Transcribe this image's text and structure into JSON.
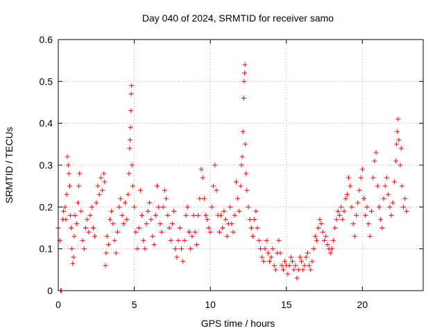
{
  "chart_data": {
    "type": "scatter",
    "title": "Day 040 of 2024, SRMTID for receiver samo",
    "xlabel": "GPS time / hours",
    "ylabel": "SRMTID / TECUs",
    "xlim": [
      0,
      24
    ],
    "ylim": [
      0,
      0.6
    ],
    "xticks": [
      0,
      5,
      10,
      15,
      20
    ],
    "xtick_labels": [
      "0",
      "5",
      "10",
      "15",
      "20"
    ],
    "yticks": [
      0,
      0.1,
      0.2,
      0.3,
      0.4,
      0.5,
      0.6
    ],
    "ytick_labels": [
      "0",
      "0.1",
      "0.2",
      "0.3",
      "0.4",
      "0.5",
      "0.6"
    ],
    "grid": true,
    "marker": "plus",
    "color": "#ff0000",
    "series": [
      {
        "name": "SRMTID",
        "points": [
          [
            0.0,
            0.15
          ],
          [
            0.1,
            0.12
          ],
          [
            0.15,
            0.0
          ],
          [
            0.2,
            0.0
          ],
          [
            0.3,
            0.17
          ],
          [
            0.35,
            0.19
          ],
          [
            0.45,
            0.2
          ],
          [
            0.5,
            0.17
          ],
          [
            0.55,
            0.23
          ],
          [
            0.6,
            0.32
          ],
          [
            0.65,
            0.3
          ],
          [
            0.7,
            0.28
          ],
          [
            0.75,
            0.25
          ],
          [
            0.8,
            0.18
          ],
          [
            0.85,
            0.15
          ],
          [
            0.9,
            0.1
          ],
          [
            0.95,
            0.065
          ],
          [
            1.0,
            0.08
          ],
          [
            1.05,
            0.13
          ],
          [
            1.1,
            0.18
          ],
          [
            1.2,
            0.16
          ],
          [
            1.3,
            0.21
          ],
          [
            1.35,
            0.25
          ],
          [
            1.4,
            0.28
          ],
          [
            1.5,
            0.19
          ],
          [
            1.6,
            0.12
          ],
          [
            1.7,
            0.1
          ],
          [
            1.8,
            0.15
          ],
          [
            1.9,
            0.17
          ],
          [
            2.0,
            0.14
          ],
          [
            2.1,
            0.18
          ],
          [
            2.2,
            0.2
          ],
          [
            2.3,
            0.15
          ],
          [
            2.4,
            0.13
          ],
          [
            2.5,
            0.21
          ],
          [
            2.6,
            0.25
          ],
          [
            2.7,
            0.23
          ],
          [
            2.8,
            0.27
          ],
          [
            2.9,
            0.24
          ],
          [
            3.0,
            0.28
          ],
          [
            3.05,
            0.26
          ],
          [
            3.1,
            0.06
          ],
          [
            3.15,
            0.09
          ],
          [
            3.2,
            0.13
          ],
          [
            3.3,
            0.11
          ],
          [
            3.4,
            0.17
          ],
          [
            3.5,
            0.19
          ],
          [
            3.6,
            0.16
          ],
          [
            3.7,
            0.12
          ],
          [
            3.8,
            0.09
          ],
          [
            3.9,
            0.14
          ],
          [
            4.0,
            0.2
          ],
          [
            4.1,
            0.22
          ],
          [
            4.2,
            0.18
          ],
          [
            4.3,
            0.16
          ],
          [
            4.4,
            0.21
          ],
          [
            4.5,
            0.17
          ],
          [
            4.6,
            0.23
          ],
          [
            4.65,
            0.28
          ],
          [
            4.7,
            0.34
          ],
          [
            4.72,
            0.36
          ],
          [
            4.75,
            0.39
          ],
          [
            4.78,
            0.43
          ],
          [
            4.8,
            0.47
          ],
          [
            4.82,
            0.49
          ],
          [
            4.85,
            0.3
          ],
          [
            4.9,
            0.25
          ],
          [
            5.0,
            0.2
          ],
          [
            5.1,
            0.14
          ],
          [
            5.2,
            0.1
          ],
          [
            5.3,
            0.15
          ],
          [
            5.4,
            0.24
          ],
          [
            5.5,
            0.18
          ],
          [
            5.6,
            0.12
          ],
          [
            5.7,
            0.1
          ],
          [
            5.8,
            0.16
          ],
          [
            5.9,
            0.19
          ],
          [
            6.0,
            0.21
          ],
          [
            6.1,
            0.17
          ],
          [
            6.2,
            0.13
          ],
          [
            6.3,
            0.11
          ],
          [
            6.4,
            0.18
          ],
          [
            6.5,
            0.25
          ],
          [
            6.6,
            0.2
          ],
          [
            6.7,
            0.16
          ],
          [
            6.8,
            0.14
          ],
          [
            6.9,
            0.2
          ],
          [
            7.0,
            0.24
          ],
          [
            7.1,
            0.22
          ],
          [
            7.2,
            0.18
          ],
          [
            7.3,
            0.15
          ],
          [
            7.4,
            0.12
          ],
          [
            7.5,
            0.16
          ],
          [
            7.6,
            0.19
          ],
          [
            7.7,
            0.1
          ],
          [
            7.8,
            0.08
          ],
          [
            7.9,
            0.12
          ],
          [
            8.0,
            0.15
          ],
          [
            8.1,
            0.1
          ],
          [
            8.2,
            0.07
          ],
          [
            8.3,
            0.12
          ],
          [
            8.4,
            0.18
          ],
          [
            8.5,
            0.2
          ],
          [
            8.6,
            0.14
          ],
          [
            8.7,
            0.1
          ],
          [
            8.8,
            0.13
          ],
          [
            8.9,
            0.18
          ],
          [
            9.0,
            0.14
          ],
          [
            9.1,
            0.11
          ],
          [
            9.2,
            0.18
          ],
          [
            9.3,
            0.22
          ],
          [
            9.4,
            0.29
          ],
          [
            9.5,
            0.27
          ],
          [
            9.6,
            0.22
          ],
          [
            9.7,
            0.18
          ],
          [
            9.8,
            0.17
          ],
          [
            9.9,
            0.15
          ],
          [
            10.0,
            0.14
          ],
          [
            10.1,
            0.2
          ],
          [
            10.2,
            0.25
          ],
          [
            10.3,
            0.3
          ],
          [
            10.4,
            0.24
          ],
          [
            10.5,
            0.18
          ],
          [
            10.6,
            0.14
          ],
          [
            10.7,
            0.18
          ],
          [
            10.8,
            0.15
          ],
          [
            10.9,
            0.19
          ],
          [
            11.0,
            0.17
          ],
          [
            11.1,
            0.13
          ],
          [
            11.2,
            0.16
          ],
          [
            11.3,
            0.2
          ],
          [
            11.4,
            0.16
          ],
          [
            11.5,
            0.14
          ],
          [
            11.6,
            0.18
          ],
          [
            11.7,
            0.26
          ],
          [
            11.8,
            0.22
          ],
          [
            11.9,
            0.19
          ],
          [
            12.0,
            0.25
          ],
          [
            12.05,
            0.3
          ],
          [
            12.1,
            0.32
          ],
          [
            12.15,
            0.38
          ],
          [
            12.2,
            0.46
          ],
          [
            12.22,
            0.5
          ],
          [
            12.25,
            0.52
          ],
          [
            12.28,
            0.54
          ],
          [
            12.3,
            0.35
          ],
          [
            12.35,
            0.28
          ],
          [
            12.4,
            0.24
          ],
          [
            12.5,
            0.2
          ],
          [
            12.6,
            0.17
          ],
          [
            12.7,
            0.15
          ],
          [
            12.8,
            0.13
          ],
          [
            12.9,
            0.17
          ],
          [
            13.0,
            0.19
          ],
          [
            13.1,
            0.15
          ],
          [
            13.2,
            0.12
          ],
          [
            13.3,
            0.1
          ],
          [
            13.4,
            0.08
          ],
          [
            13.5,
            0.07
          ],
          [
            13.6,
            0.1
          ],
          [
            13.7,
            0.12
          ],
          [
            13.8,
            0.09
          ],
          [
            13.9,
            0.07
          ],
          [
            14.0,
            0.08
          ],
          [
            14.1,
            0.1
          ],
          [
            14.2,
            0.06
          ],
          [
            14.3,
            0.05
          ],
          [
            14.4,
            0.09
          ],
          [
            14.5,
            0.12
          ],
          [
            14.6,
            0.09
          ],
          [
            14.7,
            0.06
          ],
          [
            14.8,
            0.05
          ],
          [
            14.9,
            0.07
          ],
          [
            15.0,
            0.06
          ],
          [
            15.1,
            0.04
          ],
          [
            15.2,
            0.06
          ],
          [
            15.3,
            0.08
          ],
          [
            15.4,
            0.07
          ],
          [
            15.5,
            0.05
          ],
          [
            15.6,
            0.06
          ],
          [
            15.7,
            0.03
          ],
          [
            15.8,
            0.05
          ],
          [
            15.9,
            0.08
          ],
          [
            16.0,
            0.07
          ],
          [
            16.1,
            0.05
          ],
          [
            16.2,
            0.06
          ],
          [
            16.3,
            0.08
          ],
          [
            16.4,
            0.09
          ],
          [
            16.5,
            0.06
          ],
          [
            16.6,
            0.05
          ],
          [
            16.7,
            0.07
          ],
          [
            16.8,
            0.1
          ],
          [
            16.9,
            0.13
          ],
          [
            17.0,
            0.12
          ],
          [
            17.1,
            0.15
          ],
          [
            17.2,
            0.17
          ],
          [
            17.3,
            0.16
          ],
          [
            17.4,
            0.14
          ],
          [
            17.5,
            0.12
          ],
          [
            17.6,
            0.13
          ],
          [
            17.7,
            0.11
          ],
          [
            17.8,
            0.1
          ],
          [
            17.9,
            0.09
          ],
          [
            18.0,
            0.1
          ],
          [
            18.1,
            0.12
          ],
          [
            18.2,
            0.15
          ],
          [
            18.3,
            0.17
          ],
          [
            18.4,
            0.19
          ],
          [
            18.5,
            0.18
          ],
          [
            18.6,
            0.2
          ],
          [
            18.7,
            0.17
          ],
          [
            18.8,
            0.19
          ],
          [
            18.9,
            0.22
          ],
          [
            19.0,
            0.23
          ],
          [
            19.1,
            0.27
          ],
          [
            19.2,
            0.25
          ],
          [
            19.3,
            0.2
          ],
          [
            19.4,
            0.16
          ],
          [
            19.5,
            0.13
          ],
          [
            19.6,
            0.18
          ],
          [
            19.7,
            0.21
          ],
          [
            19.8,
            0.24
          ],
          [
            19.9,
            0.27
          ],
          [
            20.0,
            0.29
          ],
          [
            20.1,
            0.22
          ],
          [
            20.2,
            0.18
          ],
          [
            20.3,
            0.2
          ],
          [
            20.4,
            0.16
          ],
          [
            20.5,
            0.13
          ],
          [
            20.6,
            0.19
          ],
          [
            20.7,
            0.27
          ],
          [
            20.8,
            0.31
          ],
          [
            20.9,
            0.33
          ],
          [
            21.0,
            0.25
          ],
          [
            21.1,
            0.2
          ],
          [
            21.2,
            0.17
          ],
          [
            21.3,
            0.15
          ],
          [
            21.4,
            0.22
          ],
          [
            21.5,
            0.25
          ],
          [
            21.6,
            0.27
          ],
          [
            21.7,
            0.23
          ],
          [
            21.8,
            0.2
          ],
          [
            21.9,
            0.18
          ],
          [
            22.0,
            0.21
          ],
          [
            22.1,
            0.26
          ],
          [
            22.2,
            0.31
          ],
          [
            22.25,
            0.35
          ],
          [
            22.3,
            0.38
          ],
          [
            22.35,
            0.41
          ],
          [
            22.4,
            0.36
          ],
          [
            22.5,
            0.3
          ],
          [
            22.55,
            0.34
          ],
          [
            22.6,
            0.25
          ],
          [
            22.7,
            0.2
          ],
          [
            22.8,
            0.22
          ],
          [
            22.9,
            0.19
          ]
        ]
      }
    ]
  }
}
